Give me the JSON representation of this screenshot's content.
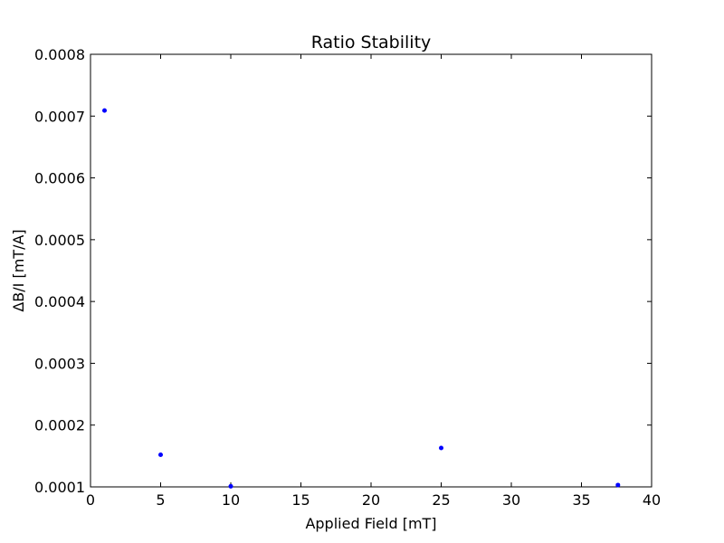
{
  "chart_data": {
    "type": "scatter",
    "title": "Ratio Stability",
    "xlabel": "Applied Field [mT]",
    "ylabel": "ΔB/I [mT/A]",
    "xlim": [
      0,
      40
    ],
    "ylim": [
      0.0001,
      0.0008
    ],
    "xticks": [
      "0",
      "5",
      "10",
      "15",
      "20",
      "25",
      "30",
      "35",
      "40"
    ],
    "yticks": [
      "0.0001",
      "0.0002",
      "0.0003",
      "0.0004",
      "0.0005",
      "0.0006",
      "0.0007",
      "0.0008"
    ],
    "grid": false,
    "series": [
      {
        "color": "#0000ff",
        "marker": "dot",
        "points": [
          {
            "x": 1,
            "y": 0.000709
          },
          {
            "x": 5,
            "y": 0.000152
          },
          {
            "x": 10,
            "y": 0.000101
          },
          {
            "x": 25,
            "y": 0.000163
          },
          {
            "x": 37.6,
            "y": 0.000103
          }
        ]
      }
    ]
  }
}
